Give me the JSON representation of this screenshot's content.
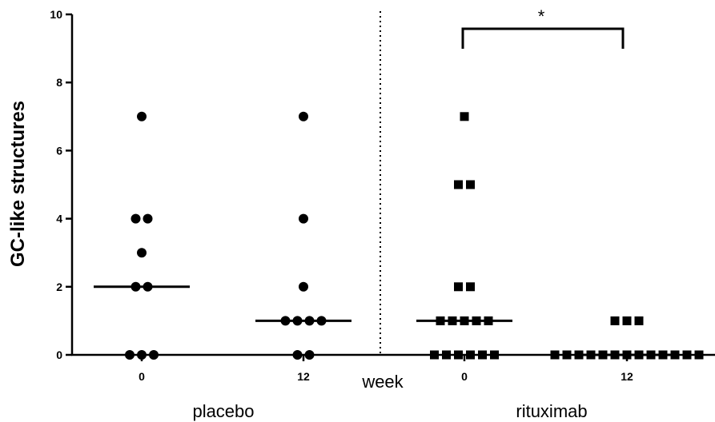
{
  "chart_data": {
    "type": "scatter",
    "ylabel": "GC-like structures",
    "ylim": [
      0,
      10
    ],
    "yticks": [
      "0",
      "2",
      "4",
      "6",
      "8",
      "10"
    ],
    "xlabel_middle": "week",
    "significance": "*",
    "groups": [
      {
        "name": "placebo",
        "marker": "circle",
        "timepoints": [
          {
            "week": "0",
            "values": [
              7,
              4,
              4,
              3,
              2,
              2,
              0,
              0,
              0
            ],
            "median": 2
          },
          {
            "week": "12",
            "values": [
              7,
              4,
              2,
              1,
              1,
              1,
              1,
              0,
              0
            ],
            "median": 1
          }
        ]
      },
      {
        "name": "rituximab",
        "marker": "square",
        "timepoints": [
          {
            "week": "0",
            "values": [
              7,
              5,
              5,
              2,
              2,
              1,
              1,
              1,
              1,
              1,
              0,
              0,
              0,
              0,
              0,
              0
            ],
            "median": 1
          },
          {
            "week": "12",
            "values": [
              1,
              1,
              1,
              0,
              0,
              0,
              0,
              0,
              0,
              0,
              0,
              0,
              0,
              0,
              0,
              0
            ],
            "median": 0
          }
        ]
      }
    ],
    "colors": {
      "marker": "#000000",
      "axis": "#000000"
    }
  }
}
